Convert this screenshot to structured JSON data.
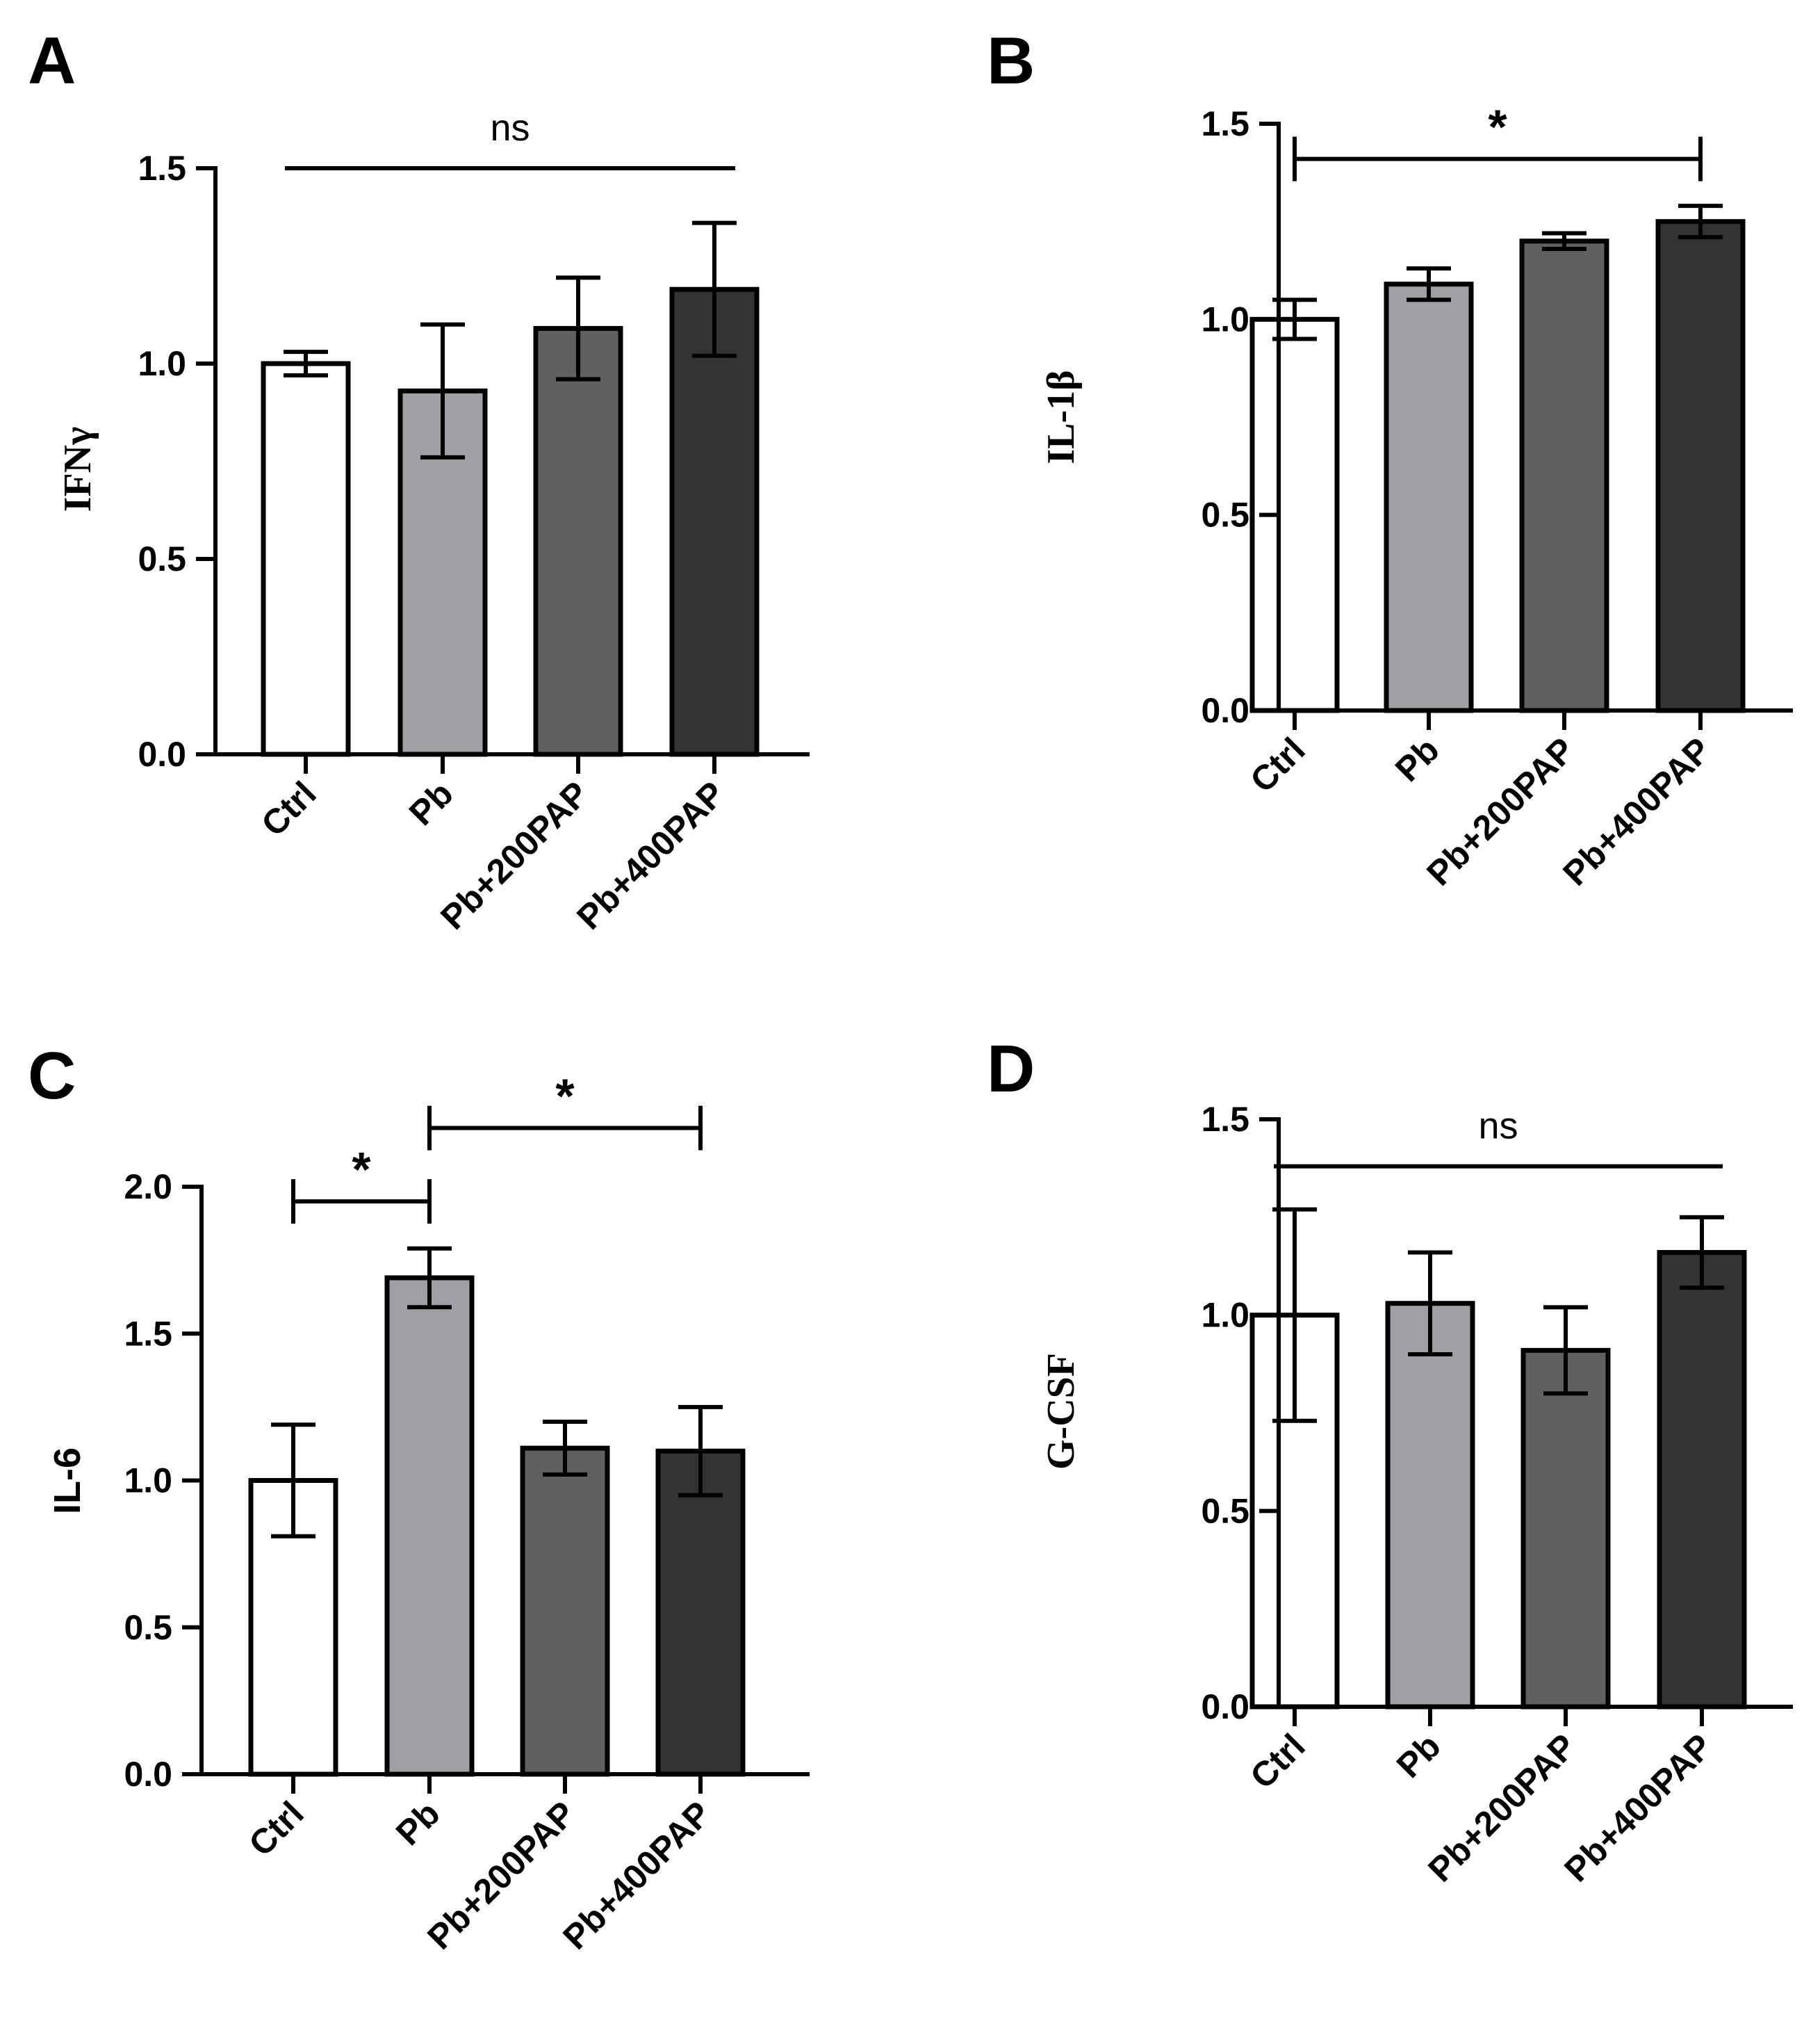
{
  "figure": {
    "colors": {
      "Ctrl": "#ffffff",
      "Pb": "#a0a0a4",
      "Pb+200PAP": "#606060",
      "Pb+400PAP": "#333333",
      "stroke": "#000000"
    }
  },
  "chart_data": [
    {
      "panel": "A",
      "type": "bar",
      "categories": [
        "Ctrl",
        "Pb",
        "Pb+200PAP",
        "Pb+400PAP"
      ],
      "values": [
        1.0,
        0.93,
        1.09,
        1.19
      ],
      "errors": [
        0.03,
        0.17,
        0.13,
        0.17
      ],
      "ylabel": "IFNγ",
      "ylim": [
        0,
        1.5
      ],
      "yticks": [
        "0.0",
        "0.5",
        "1.0",
        "1.5"
      ],
      "annotations": [
        {
          "type": "line",
          "from": "Ctrl",
          "to": "Pb+400PAP",
          "y": 1.5,
          "label": "ns",
          "caps": false
        }
      ]
    },
    {
      "panel": "B",
      "type": "bar",
      "categories": [
        "Ctrl",
        "Pb",
        "Pb+200PAP",
        "Pb+400PAP"
      ],
      "values": [
        1.0,
        1.09,
        1.2,
        1.25
      ],
      "errors": [
        0.05,
        0.04,
        0.02,
        0.04
      ],
      "ylabel": "IL-1β",
      "ylim": [
        0,
        1.5
      ],
      "yticks": [
        "0.0",
        "0.5",
        "1.0",
        "1.5"
      ],
      "annotations": [
        {
          "type": "bracket",
          "from": "Ctrl",
          "to": "Pb+400PAP",
          "y": 1.41,
          "label": "*",
          "caps": true
        }
      ]
    },
    {
      "panel": "C",
      "type": "bar",
      "categories": [
        "Ctrl",
        "Pb",
        "Pb+200PAP",
        "Pb+400PAP"
      ],
      "values": [
        1.0,
        1.69,
        1.11,
        1.1
      ],
      "errors": [
        0.19,
        0.1,
        0.09,
        0.15
      ],
      "ylabel": "IL-6",
      "ylim": [
        0,
        2.0
      ],
      "yticks": [
        "0.0",
        "0.5",
        "1.0",
        "1.5",
        "2.0"
      ],
      "annotations": [
        {
          "type": "bracket",
          "from": "Ctrl",
          "to": "Pb",
          "y": 1.95,
          "label": "*",
          "caps": true
        },
        {
          "type": "bracket",
          "from": "Pb",
          "to": "Pb+400PAP",
          "y": 2.2,
          "label": "*",
          "caps": true
        }
      ]
    },
    {
      "panel": "D",
      "type": "bar",
      "categories": [
        "Ctrl",
        "Pb",
        "Pb+200PAP",
        "Pb+400PAP"
      ],
      "values": [
        1.0,
        1.03,
        0.91,
        1.16
      ],
      "errors": [
        0.27,
        0.13,
        0.11,
        0.09
      ],
      "ylabel": "G-CSF",
      "ylim": [
        0,
        1.5
      ],
      "yticks": [
        "0.0",
        "0.5",
        "1.0",
        "1.5"
      ],
      "annotations": [
        {
          "type": "line",
          "from": "Ctrl",
          "to": "Pb+400PAP",
          "y": 1.38,
          "label": "ns",
          "caps": false
        }
      ]
    }
  ]
}
